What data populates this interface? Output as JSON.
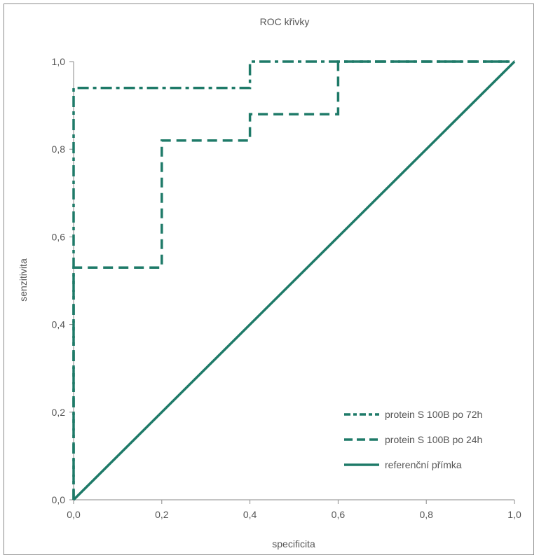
{
  "chart_data": {
    "type": "line",
    "title": "ROC křivky",
    "xlabel": "specificita",
    "ylabel": "senzitivita",
    "xlim": [
      0,
      1
    ],
    "ylim": [
      0,
      1
    ],
    "xticks": [
      "0,0",
      "0,2",
      "0,4",
      "0,6",
      "0,8",
      "1,0"
    ],
    "yticks": [
      "0,0",
      "0,2",
      "0,4",
      "0,6",
      "0,8",
      "1,0"
    ],
    "grid": false,
    "legend_position": "bottom-right",
    "color": "#1e7a68",
    "series": [
      {
        "name": "protein S 100B po 72h",
        "style": "dash-dot",
        "x": [
          0,
          0,
          0.4,
          0.4,
          1.0
        ],
        "y": [
          0,
          0.94,
          0.94,
          1.0,
          1.0
        ]
      },
      {
        "name": "protein S 100B po 24h",
        "style": "dashed",
        "x": [
          0,
          0,
          0.2,
          0.2,
          0.4,
          0.4,
          0.6,
          0.6,
          1.0
        ],
        "y": [
          0,
          0.53,
          0.53,
          0.82,
          0.82,
          0.88,
          0.88,
          1.0,
          1.0
        ]
      },
      {
        "name": "referenční přímka",
        "style": "solid",
        "x": [
          0,
          1
        ],
        "y": [
          0,
          1
        ]
      }
    ]
  }
}
